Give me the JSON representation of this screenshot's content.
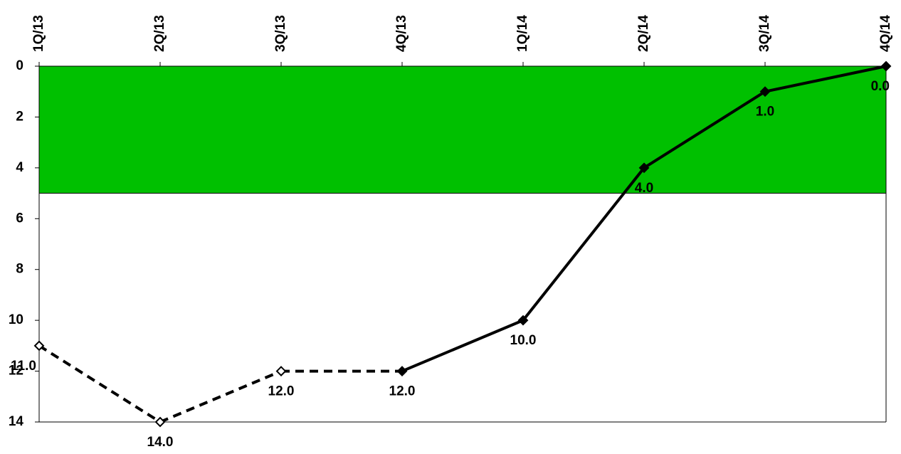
{
  "chart_data": {
    "type": "line",
    "title": "",
    "xlabel": "",
    "ylabel": "",
    "categories": [
      "1Q/13",
      "2Q/13",
      "3Q/13",
      "4Q/13",
      "1Q/14",
      "2Q/14",
      "3Q/14",
      "4Q/14"
    ],
    "ylim": [
      0,
      14
    ],
    "y_inverted": true,
    "y_ticks": [
      "0",
      "2",
      "4",
      "6",
      "8",
      "10",
      "12",
      "14"
    ],
    "x_axis_position": "top",
    "grid": false,
    "series": [
      {
        "values": [
          11.0,
          14.0,
          12.0,
          12.0,
          10.0,
          4.0,
          1.0,
          0.0
        ],
        "data_labels": [
          "11.0",
          "14.0",
          "12.0",
          "12.0",
          "10.0",
          "4.0",
          "1.0",
          "0.0"
        ],
        "dashed_through_index": 3,
        "color": "#000000"
      }
    ],
    "target_band": {
      "from": 0,
      "to": 5,
      "color": "#00c000"
    }
  }
}
